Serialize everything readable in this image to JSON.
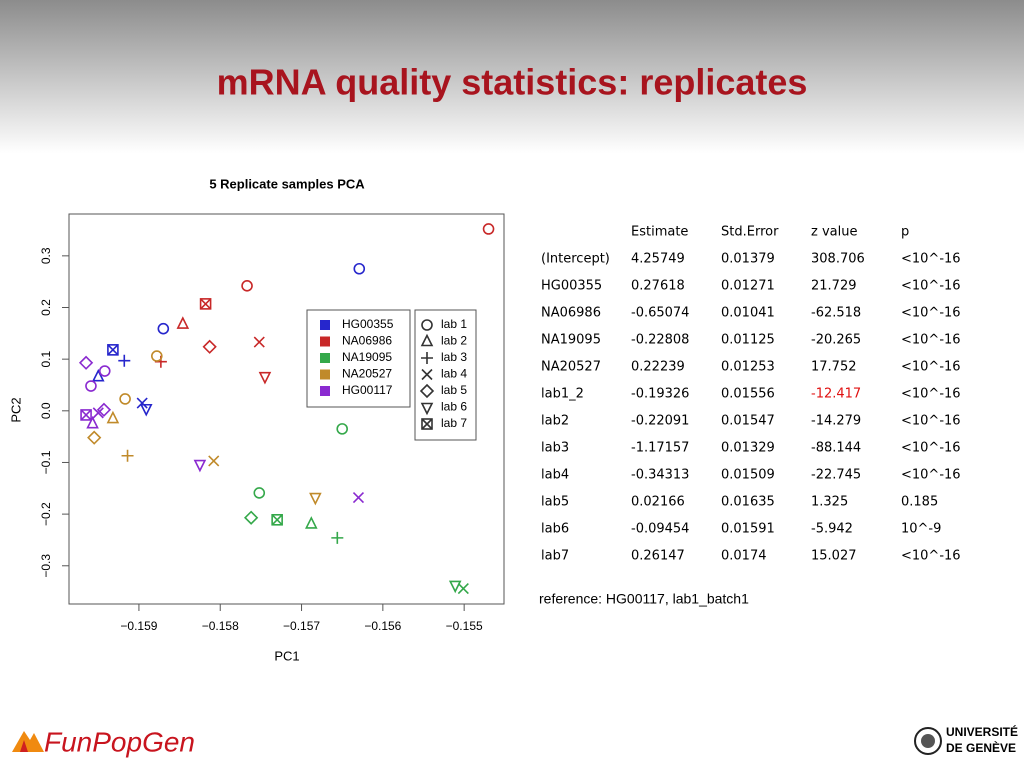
{
  "title": "mRNA quality statistics: replicates",
  "chart_data": {
    "type": "scatter",
    "title": "5 Replicate samples PCA",
    "xlabel": "PC1",
    "ylabel": "PC2",
    "xlim": [
      -0.15986,
      -0.15451
    ],
    "ylim": [
      -0.374,
      0.381
    ],
    "xticks": [
      {
        "value": -0.159,
        "label": "−0.159"
      },
      {
        "value": -0.158,
        "label": "−0.158"
      },
      {
        "value": -0.157,
        "label": "−0.157"
      },
      {
        "value": -0.156,
        "label": "−0.156"
      },
      {
        "value": -0.155,
        "label": "−0.155"
      }
    ],
    "yticks": [
      {
        "value": -0.3,
        "label": "−0.3"
      },
      {
        "value": -0.2,
        "label": "−0.2"
      },
      {
        "value": -0.1,
        "label": "−0.1"
      },
      {
        "value": 0,
        "label": "0.0"
      },
      0.1,
      0.2,
      0.3
    ],
    "series": [
      {
        "name": "HG00355",
        "color": "#2626cc",
        "x": [
          -0.1587,
          -0.15629,
          -0.1595,
          -0.15918,
          -0.15896,
          -0.15891,
          -0.15932
        ],
        "values": [
          0.159,
          0.275,
          0.066,
          0.097,
          0.015,
          0.004,
          0.118
        ],
        "markers": [
          "circle",
          "circle",
          "triangle",
          "plus",
          "x",
          "down-triangle",
          "square-x"
        ]
      },
      {
        "name": "NA06986",
        "color": "#c82828",
        "x": [
          -0.15767,
          -0.1547,
          -0.15846,
          -0.15873,
          -0.15752,
          -0.15813,
          -0.15745,
          -0.15818
        ],
        "values": [
          0.242,
          0.352,
          0.168,
          0.095,
          0.133,
          0.124,
          0.066,
          0.207
        ],
        "markers": [
          "circle",
          "circle",
          "triangle",
          "plus",
          "x",
          "diamond",
          "down-triangle",
          "square-x"
        ]
      },
      {
        "name": "NA19095",
        "color": "#34a84a",
        "x": [
          -0.15752,
          -0.1565,
          -0.15688,
          -0.15656,
          -0.15501,
          -0.15762,
          -0.15511,
          -0.1573
        ],
        "values": [
          -0.159,
          -0.035,
          -0.219,
          -0.246,
          -0.344,
          -0.207,
          -0.338,
          -0.211
        ],
        "markers": [
          "circle",
          "circle",
          "triangle",
          "plus",
          "x",
          "diamond",
          "down-triangle",
          "square-x"
        ]
      },
      {
        "name": "NA20527",
        "color": "#c08a2a",
        "x": [
          -0.15917,
          -0.15878,
          -0.15932,
          -0.15914,
          -0.15808,
          -0.15955,
          -0.15683
        ],
        "values": [
          0.023,
          0.106,
          -0.015,
          -0.087,
          -0.097,
          -0.052,
          -0.168
        ],
        "markers": [
          "circle",
          "circle",
          "triangle",
          "plus",
          "x",
          "diamond",
          "down-triangle"
        ]
      },
      {
        "name": "HG00117",
        "color": "#8a2ad0",
        "x": [
          -0.15942,
          -0.15959,
          -0.15957,
          -0.1595,
          -0.15965,
          -0.15943,
          -0.15825,
          -0.15965,
          -0.1563
        ],
        "values": [
          0.077,
          0.048,
          -0.025,
          -0.004,
          0.093,
          0.002,
          -0.104,
          -0.008,
          -0.168
        ],
        "markers": [
          "circle",
          "circle",
          "triangle",
          "x",
          "diamond",
          "diamond",
          "down-triangle",
          "square-x",
          "x"
        ]
      }
    ],
    "labs": [
      {
        "name": "lab 1",
        "marker": "circle"
      },
      {
        "name": "lab 2",
        "marker": "triangle"
      },
      {
        "name": "lab 3",
        "marker": "plus"
      },
      {
        "name": "lab 4",
        "marker": "x"
      },
      {
        "name": "lab 5",
        "marker": "diamond"
      },
      {
        "name": "lab 6",
        "marker": "down-triangle"
      },
      {
        "name": "lab 7",
        "marker": "square-x"
      }
    ]
  },
  "table": {
    "columns": [
      "Estimate",
      "Std.Error",
      "z value",
      "p"
    ],
    "rows": [
      [
        "(Intercept)",
        "4.25749",
        "0.01379",
        "308.706",
        "<10^-16"
      ],
      [
        "HG00355",
        "0.27618",
        "0.01271",
        "21.729",
        "<10^-16"
      ],
      [
        "NA06986",
        "-0.65074",
        "0.01041",
        "-62.518",
        "<10^-16"
      ],
      [
        "NA19095",
        "-0.22808",
        "0.01125",
        "-20.265",
        "<10^-16"
      ],
      [
        "NA20527",
        "0.22239",
        "0.01253",
        "17.752",
        "<10^-16"
      ],
      [
        "lab1_2",
        "-0.19326",
        "0.01556",
        {
          "text": "-12.417",
          "color": "#e01010"
        },
        "<10^-16"
      ],
      [
        "lab2",
        "-0.22091",
        "0.01547",
        "-14.279",
        "<10^-16"
      ],
      [
        "lab3",
        "-1.17157",
        "0.01329",
        "-88.144",
        "<10^-16"
      ],
      [
        "lab4",
        "-0.34313",
        "0.01509",
        "-22.745",
        "<10^-16"
      ],
      [
        "lab5",
        "0.02166",
        "0.01635",
        "1.325",
        "0.185"
      ],
      [
        "lab6",
        "-0.09454",
        "0.01591",
        "-5.942",
        "10^-9"
      ],
      [
        "lab7",
        "0.26147",
        "0.0174",
        "15.027",
        "<10^-16"
      ]
    ]
  },
  "reference": "reference: HG00117, lab1_batch1",
  "footer": {
    "logo": "FunPopGen",
    "university": [
      "UNIVERSITÉ",
      "DE GENÈVE"
    ]
  }
}
